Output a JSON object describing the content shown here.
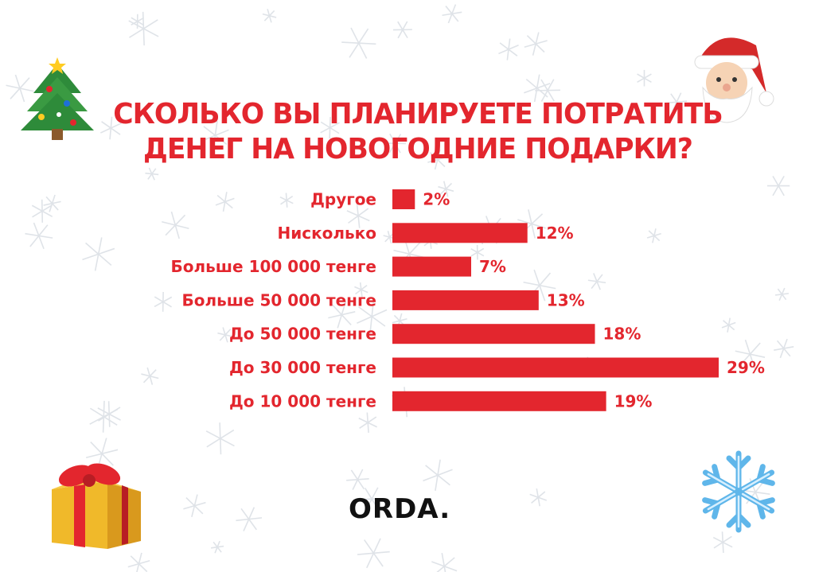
{
  "title": {
    "line1": "СКОЛЬКО ВЫ ПЛАНИРУЕТЕ ПОТРАТИТЬ",
    "line2": "ДЕНЕГ НА НОВОГОДНИЕ ПОДАРКИ?"
  },
  "brand": "ORDA.",
  "colors": {
    "accent": "#e3262e",
    "snow": "#dfe3e8"
  },
  "icons": [
    "christmas-tree-icon",
    "santa-icon",
    "gift-icon",
    "snowflake-icon"
  ],
  "chart_data": {
    "type": "bar",
    "orientation": "horizontal",
    "categories": [
      "Другое",
      "Нисколько",
      "Больше 100 000 тенге",
      "Больше 50 000 тенге",
      "До 50 000 тенге",
      "До 30 000 тенге",
      "До 10 000 тенге"
    ],
    "values": [
      2,
      12,
      7,
      13,
      18,
      29,
      19
    ],
    "value_labels": [
      "2%",
      "12%",
      "7%",
      "13%",
      "18%",
      "29%",
      "19%"
    ],
    "unit": "%",
    "xlim": [
      0,
      29
    ],
    "grid": false,
    "legend": "none"
  }
}
